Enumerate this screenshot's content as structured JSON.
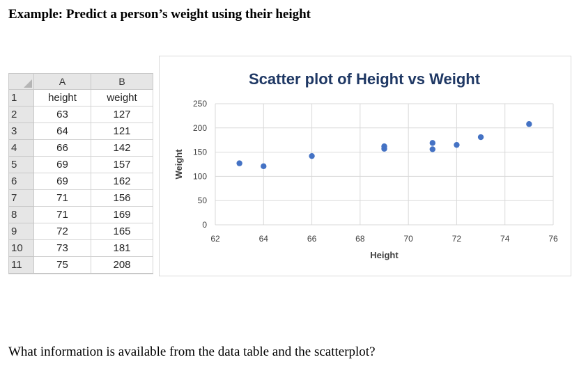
{
  "heading": "Example: Predict a person’s weight using their height",
  "question": "What information is available from the data table and the scatterplot?",
  "table": {
    "columns": [
      "A",
      "B"
    ],
    "rows": [
      {
        "row": "1",
        "a": "height",
        "b": "weight"
      },
      {
        "row": "2",
        "a": "63",
        "b": "127"
      },
      {
        "row": "3",
        "a": "64",
        "b": "121"
      },
      {
        "row": "4",
        "a": "66",
        "b": "142"
      },
      {
        "row": "5",
        "a": "69",
        "b": "157"
      },
      {
        "row": "6",
        "a": "69",
        "b": "162"
      },
      {
        "row": "7",
        "a": "71",
        "b": "156"
      },
      {
        "row": "8",
        "a": "71",
        "b": "169"
      },
      {
        "row": "9",
        "a": "72",
        "b": "165"
      },
      {
        "row": "10",
        "a": "73",
        "b": "181"
      },
      {
        "row": "11",
        "a": "75",
        "b": "208"
      }
    ]
  },
  "chart_data": {
    "type": "scatter",
    "title": "Scatter plot of Height vs Weight",
    "xlabel": "Height",
    "ylabel": "Weight",
    "xlim": [
      62,
      76
    ],
    "ylim": [
      0,
      250
    ],
    "xticks": [
      62,
      64,
      66,
      68,
      70,
      72,
      74,
      76
    ],
    "yticks": [
      0,
      50,
      100,
      150,
      200,
      250
    ],
    "grid": true,
    "legend": "none",
    "point_color": "#4472c4",
    "series": [
      {
        "x": [
          63,
          64,
          66,
          69,
          69,
          71,
          71,
          72,
          73,
          75
        ],
        "y": [
          127,
          121,
          142,
          157,
          162,
          156,
          169,
          165,
          181,
          208
        ]
      }
    ]
  }
}
